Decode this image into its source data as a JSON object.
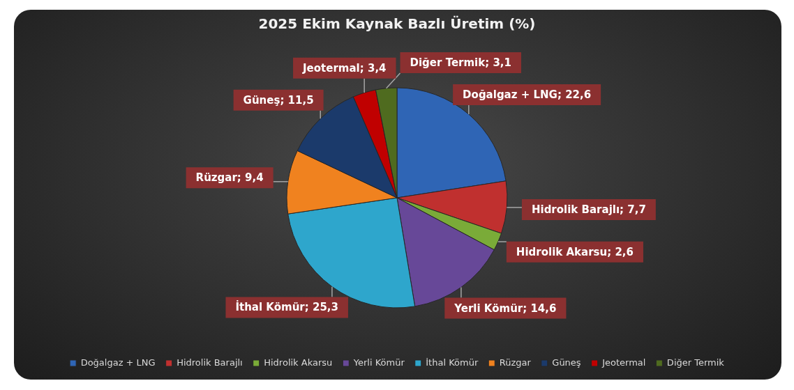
{
  "chart_data": {
    "type": "pie",
    "title": "2025 Ekim Kaynak Bazlı Üretim (%)",
    "categories": [
      "Doğalgaz + LNG",
      "Hidrolik Barajlı",
      "Hidrolik Akarsu",
      "Yerli Kömür",
      "İthal Kömür",
      "Rüzgar",
      "Güneş",
      "Jeotermal",
      "Diğer Termik"
    ],
    "values": [
      22.6,
      7.7,
      2.6,
      14.6,
      25.3,
      9.4,
      11.5,
      3.4,
      3.1
    ],
    "colors": [
      "#2f65b5",
      "#c0302f",
      "#7aab38",
      "#674898",
      "#2ea6cc",
      "#f0821f",
      "#1b3a6b",
      "#c00000",
      "#4f6b1f"
    ],
    "value_labels": [
      "Doğalgaz + LNG; 22,6",
      "Hidrolik Barajlı; 7,7",
      "Hidrolik Akarsu; 2,6",
      "Yerli Kömür; 14,6",
      "İthal Kömür; 25,3",
      "Rüzgar; 9,4",
      "Güneş; 11,5",
      "Jeotermal; 3,4",
      "Diğer Termik; 3,1"
    ],
    "legend": "bottom"
  }
}
